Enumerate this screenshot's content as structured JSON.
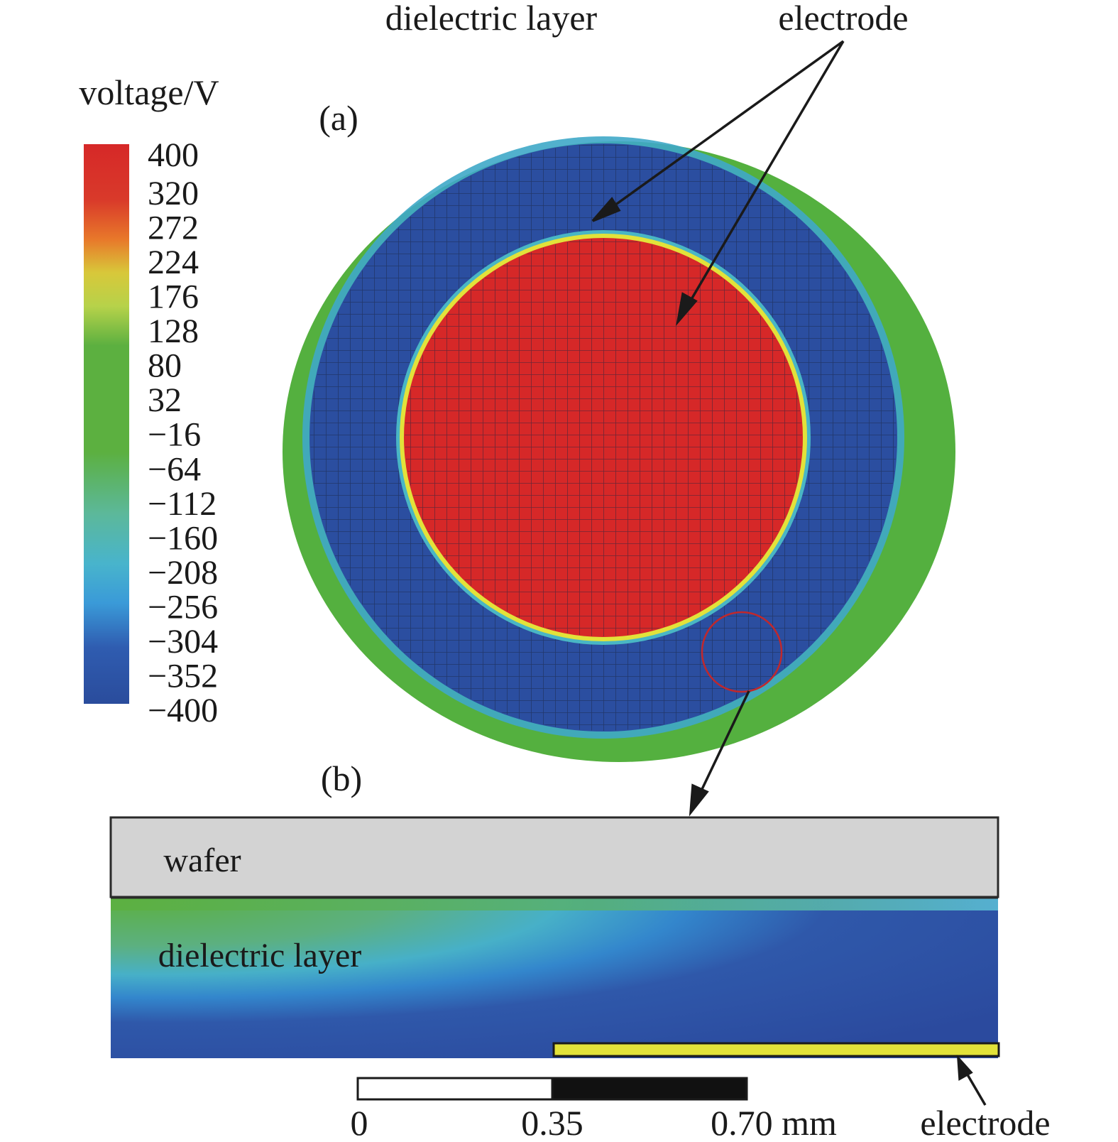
{
  "labels": {
    "top_dielectric": "dielectric layer",
    "top_electrode": "electrode",
    "panel_a": "(a)",
    "panel_b": "(b)",
    "wafer": "wafer",
    "bottom_dielectric": "dielectric layer",
    "bottom_electrode": "electrode"
  },
  "colorbar": {
    "title": "voltage/V",
    "ticks": [
      "400",
      "320",
      "272",
      "224",
      "176",
      "128",
      "80",
      "32",
      "−16",
      "−64",
      "−112",
      "−160",
      "−208",
      "−256",
      "−304",
      "−352",
      "−400"
    ],
    "min": -400,
    "max": 400
  },
  "scale_bar": {
    "ticks": [
      "0",
      "0.35",
      "0.70 mm"
    ]
  },
  "colors": {
    "red": "#d62828",
    "blue": "#2b4ea0",
    "green": "#54b03f",
    "cyan": "#3ab0d8",
    "yellow": "#e2e23a",
    "wafer_gray": "#d3d3d3",
    "highlight_circle": "#c0282c"
  }
}
